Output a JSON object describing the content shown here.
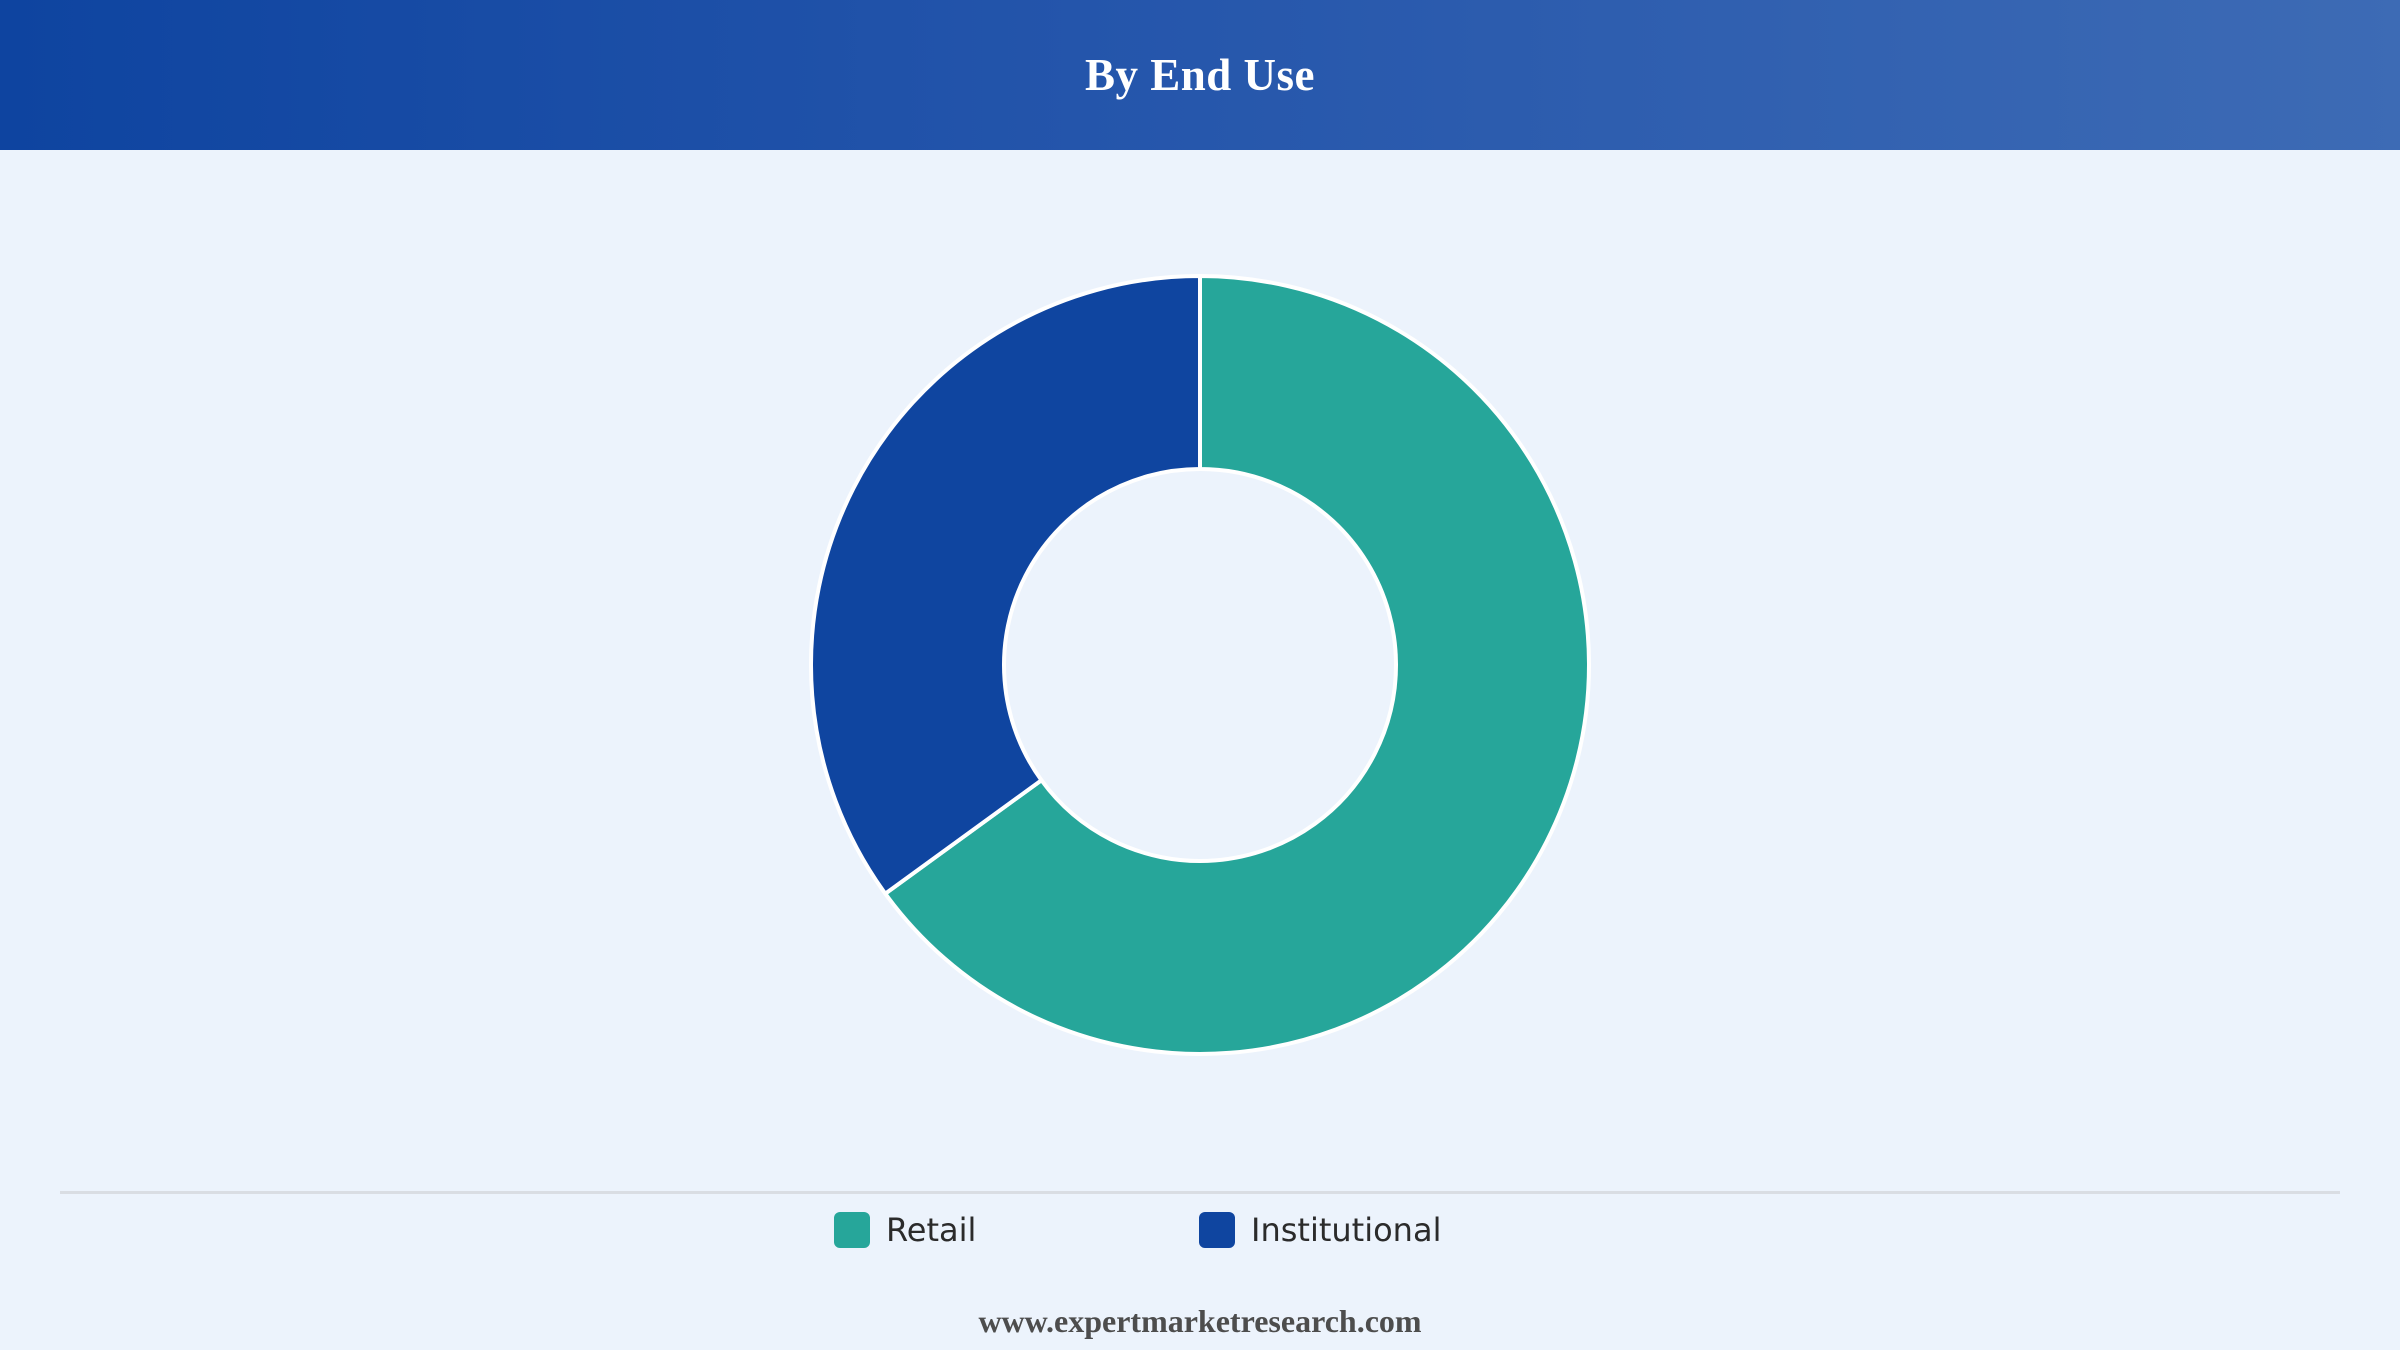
{
  "header": {
    "title": "By End Use"
  },
  "chart_data": {
    "type": "pie",
    "donut": true,
    "title": "By End Use",
    "categories": [
      "Retail",
      "Institutional"
    ],
    "values": [
      65,
      35
    ],
    "unit": "%",
    "colors": [
      "#26a69a",
      "#0f45a0"
    ],
    "slice_border_color": "#ffffff",
    "start_angle_deg": 0,
    "direction": "clockwise",
    "legend_position": "bottom"
  },
  "legend": {
    "items": [
      {
        "label": "Retail",
        "color": "#26a69a"
      },
      {
        "label": "Institutional",
        "color": "#0f45a0"
      }
    ]
  },
  "footer": {
    "source_text": "www.expertmarketresearch.com"
  }
}
